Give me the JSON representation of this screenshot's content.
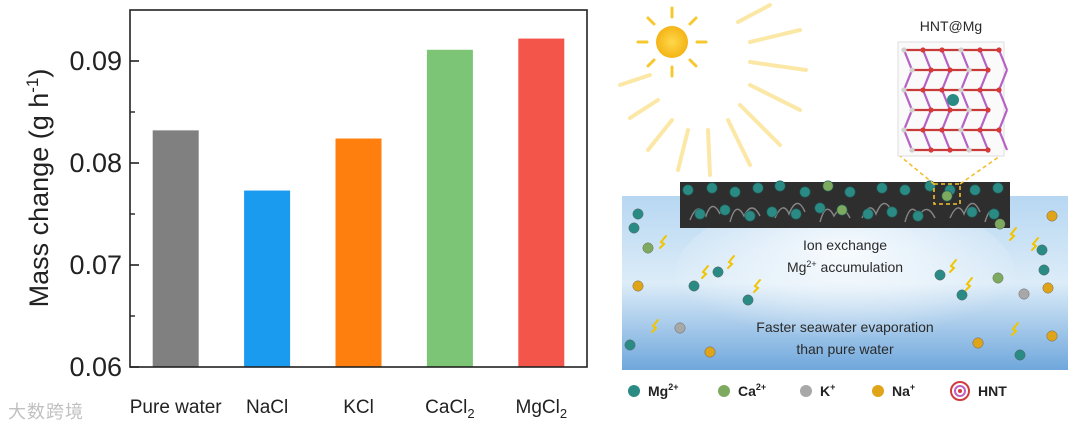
{
  "chart_data": {
    "type": "bar",
    "title": "",
    "xlabel": "",
    "ylabel": "Mass change (g h",
    "ylabel_sup": "-1",
    "ylabel_close": ")",
    "ylim": [
      0.06,
      0.095
    ],
    "yticks": [
      "0.06",
      "0.07",
      "0.08",
      "0.09"
    ],
    "categories": [
      {
        "base": "Pure water",
        "sub": ""
      },
      {
        "base": "NaCl",
        "sub": ""
      },
      {
        "base": "KCl",
        "sub": ""
      },
      {
        "base": "CaCl",
        "sub": "2"
      },
      {
        "base": "MgCl",
        "sub": "2"
      }
    ],
    "values": [
      0.0832,
      0.0773,
      0.0824,
      0.0911,
      0.0922
    ],
    "colors": [
      "#808080",
      "#1a9bf0",
      "#ff7f0e",
      "#7cc576",
      "#f4554a"
    ]
  },
  "schematic": {
    "inset_title": "HNT@Mg",
    "text1_line1": "Ion exchange",
    "text1_line2_prefix": "Mg",
    "text1_line2_sup": "2+",
    "text1_line2_suffix": " accumulation",
    "text2_line1": "Faster seawater evaporation",
    "text2_line2": "than pure water",
    "legend": [
      {
        "ion": "Mg",
        "sup": "2+",
        "color": "#2a8a84"
      },
      {
        "ion": "Ca",
        "sup": "2+",
        "color": "#7daa5e"
      },
      {
        "ion": "K",
        "sup": "+",
        "color": "#a8a8a8"
      },
      {
        "ion": "Na",
        "sup": "+",
        "color": "#e0a418"
      }
    ],
    "legend_hnt": "HNT"
  },
  "watermark": "大数跨境",
  "colors": {
    "sun": "#f8c51c",
    "water": "#6ea6da",
    "membrane": "#2e2e2e"
  }
}
